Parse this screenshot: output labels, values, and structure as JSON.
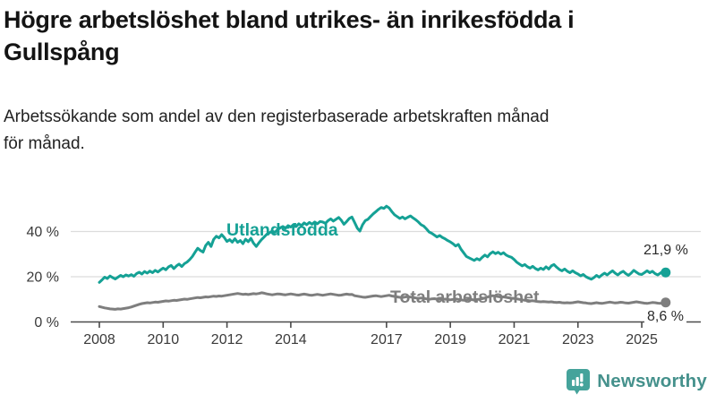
{
  "header": {
    "title": "Högre arbetslöshet bland utrikes- än inrikesfödda i Gullspång",
    "title_line1": "Högre arbetslöshet bland utrikes- än inrikesfödda i",
    "title_line2": "Gullspång",
    "subtitle": "Arbetssökande som andel av den registerbaserade arbetskraften månad för månad.",
    "subtitle_line1": "Arbetssökande som andel av den registerbaserade arbetskraften månad",
    "subtitle_line2": "för månad."
  },
  "chart_data": {
    "type": "line",
    "title": "Högre arbetslöshet bland utrikes- än inrikesfödda i Gullspång",
    "subtitle": "Arbetssökande som andel av den registerbaserade arbetskraften månad för månad.",
    "xlabel": "",
    "ylabel": "",
    "x_start": "2008-01",
    "x_end": "2025-10",
    "x_step": "1 month",
    "ylim": [
      0,
      53
    ],
    "grid": "horizontal",
    "legend_position": "inline-labels",
    "y_ticks": [
      {
        "label": "0 %",
        "value": 0
      },
      {
        "label": "20 %",
        "value": 20
      },
      {
        "label": "40 %",
        "value": 40
      }
    ],
    "x_ticks": [
      {
        "label": "2008",
        "year": 2008
      },
      {
        "label": "2010",
        "year": 2010
      },
      {
        "label": "2012",
        "year": 2012
      },
      {
        "label": "2014",
        "year": 2014
      },
      {
        "label": "2017",
        "year": 2017
      },
      {
        "label": "2019",
        "year": 2019
      },
      {
        "label": "2021",
        "year": 2021
      },
      {
        "label": "2023",
        "year": 2023
      },
      {
        "label": "2025",
        "year": 2025
      }
    ],
    "series": [
      {
        "name": "Utlandsfödda",
        "color": "#15a195",
        "end_label": "21,9 %",
        "end_value": 21.9,
        "values": [
          17.5,
          18.6,
          19.8,
          19.2,
          20.3,
          19.6,
          19.0,
          19.8,
          20.6,
          20.0,
          20.8,
          20.3,
          20.9,
          20.2,
          21.4,
          22.0,
          21.2,
          22.3,
          21.6,
          22.5,
          21.8,
          22.8,
          22.1,
          23.0,
          23.8,
          23.1,
          24.3,
          25.0,
          23.6,
          24.8,
          25.6,
          24.5,
          25.8,
          26.5,
          27.6,
          29.0,
          30.8,
          32.6,
          31.6,
          30.9,
          33.8,
          35.2,
          33.4,
          36.5,
          37.9,
          37.2,
          38.6,
          37.3,
          35.6,
          36.4,
          35.3,
          36.8,
          35.2,
          36.0,
          34.6,
          36.6,
          35.5,
          37.0,
          34.8,
          33.4,
          35.0,
          36.4,
          37.6,
          38.8,
          39.4,
          40.2,
          39.6,
          40.8,
          41.6,
          42.2,
          41.4,
          42.6,
          42.0,
          43.0,
          42.2,
          43.4,
          42.6,
          43.8,
          43.0,
          44.0,
          43.2,
          44.2,
          43.4,
          44.4,
          44.2,
          43.6,
          44.8,
          45.6,
          44.6,
          45.4,
          46.2,
          45.0,
          43.2,
          44.4,
          45.8,
          46.4,
          44.0,
          41.5,
          40.2,
          43.0,
          44.8,
          45.4,
          46.6,
          47.8,
          48.8,
          49.8,
          50.6,
          50.2,
          51.2,
          50.4,
          48.8,
          47.4,
          46.6,
          45.8,
          46.4,
          45.6,
          46.3,
          46.9,
          46.0,
          45.2,
          44.2,
          43.0,
          42.4,
          41.2,
          39.8,
          39.2,
          38.4,
          37.6,
          38.2,
          37.4,
          36.8,
          36.0,
          35.4,
          34.6,
          33.6,
          34.3,
          32.2,
          30.6,
          29.0,
          28.4,
          27.8,
          27.2,
          28.0,
          27.4,
          28.6,
          29.6,
          28.8,
          30.2,
          31.0,
          30.2,
          30.8,
          30.0,
          30.6,
          29.6,
          29.0,
          28.6,
          27.6,
          26.4,
          25.6,
          24.8,
          25.4,
          24.4,
          23.8,
          24.6,
          23.6,
          23.0,
          23.8,
          23.2,
          24.4,
          23.4,
          24.8,
          25.4,
          24.2,
          23.2,
          22.6,
          23.4,
          22.4,
          21.8,
          22.6,
          21.8,
          21.2,
          20.4,
          21.0,
          20.0,
          19.4,
          18.9,
          19.6,
          20.6,
          19.8,
          20.8,
          21.6,
          20.8,
          21.8,
          22.6,
          21.6,
          20.8,
          21.8,
          22.4,
          21.4,
          20.6,
          21.6,
          22.8,
          22.0,
          21.2,
          21.0,
          21.8,
          22.6,
          21.8,
          22.4,
          21.4,
          20.8,
          21.6,
          22.4,
          21.9
        ]
      },
      {
        "name": "Total arbetslöshet",
        "color": "#7e7e7e",
        "end_label": "8,6 %",
        "end_value": 8.6,
        "values": [
          6.8,
          6.5,
          6.2,
          6.0,
          5.8,
          5.7,
          5.6,
          5.8,
          5.7,
          5.9,
          6.1,
          6.3,
          6.6,
          7.0,
          7.4,
          7.8,
          8.1,
          8.3,
          8.5,
          8.4,
          8.6,
          8.8,
          8.7,
          8.9,
          9.1,
          9.3,
          9.2,
          9.4,
          9.6,
          9.5,
          9.7,
          9.9,
          10.1,
          10.0,
          10.2,
          10.4,
          10.6,
          10.8,
          10.7,
          10.9,
          11.1,
          11.0,
          11.2,
          11.4,
          11.3,
          11.5,
          11.4,
          11.6,
          11.8,
          12.0,
          12.2,
          12.4,
          12.6,
          12.4,
          12.2,
          12.3,
          12.1,
          12.3,
          12.5,
          12.4,
          12.6,
          12.9,
          12.7,
          12.4,
          12.2,
          12.0,
          12.2,
          12.4,
          12.3,
          12.1,
          12.0,
          12.2,
          12.4,
          12.2,
          12.0,
          11.9,
          12.1,
          12.3,
          12.1,
          11.9,
          11.8,
          12.0,
          12.2,
          12.0,
          11.8,
          12.0,
          12.2,
          12.4,
          12.2,
          12.0,
          11.8,
          11.9,
          12.1,
          12.3,
          12.1,
          12.2,
          11.6,
          11.4,
          11.2,
          11.0,
          10.9,
          11.1,
          11.3,
          11.5,
          11.6,
          11.4,
          11.2,
          11.4,
          11.6,
          11.8,
          11.5,
          11.3,
          11.1,
          10.9,
          10.8,
          11.0,
          11.2,
          11.0,
          10.8,
          10.6,
          10.4,
          10.6,
          10.4,
          10.2,
          10.0,
          10.2,
          10.3,
          10.1,
          10.0,
          9.9,
          10.1,
          10.0,
          9.8,
          10.0,
          10.2,
          10.0,
          9.8,
          9.6,
          9.8,
          10.0,
          9.9,
          9.7,
          9.9,
          10.1,
          10.3,
          10.6,
          11.0,
          11.4,
          11.6,
          11.4,
          11.2,
          11.0,
          11.1,
          10.9,
          10.7,
          10.5,
          10.4,
          10.2,
          10.0,
          9.8,
          9.6,
          9.5,
          9.3,
          9.4,
          9.2,
          9.0,
          8.9,
          9.0,
          8.9,
          8.8,
          8.9,
          8.7,
          8.6,
          8.7,
          8.5,
          8.4,
          8.5,
          8.4,
          8.5,
          8.7,
          8.9,
          8.7,
          8.5,
          8.4,
          8.2,
          8.1,
          8.3,
          8.5,
          8.3,
          8.2,
          8.4,
          8.6,
          8.8,
          8.6,
          8.4,
          8.5,
          8.7,
          8.6,
          8.4,
          8.3,
          8.5,
          8.7,
          8.9,
          8.7,
          8.5,
          8.3,
          8.2,
          8.4,
          8.6,
          8.5,
          8.3,
          8.2,
          8.5,
          8.6
        ]
      }
    ],
    "colors": {
      "grid": "#dcdcdc",
      "axis": "#4a4a4a",
      "tick_label": "#3a3a3a",
      "end_label_text": "#2a2a2a"
    }
  },
  "branding": {
    "logo_text": "Newsworthy",
    "logo_text_color": "#45918c",
    "logo_icon": "newsworthy-speech-bubble-bars-icon",
    "logo_icon_color": "#45a39b"
  }
}
